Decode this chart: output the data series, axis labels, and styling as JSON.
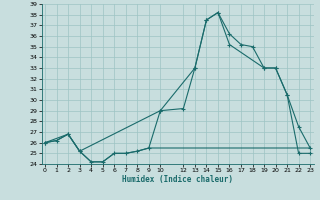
{
  "xlabel": "Humidex (Indice chaleur)",
  "bg_color": "#c8dede",
  "grid_color": "#9dc4c4",
  "line_color": "#1a6b6b",
  "xlim": [
    0,
    23
  ],
  "ylim": [
    24,
    39
  ],
  "yticks": [
    24,
    25,
    26,
    27,
    28,
    29,
    30,
    31,
    32,
    33,
    34,
    35,
    36,
    37,
    38,
    39
  ],
  "xticks": [
    0,
    1,
    2,
    3,
    4,
    5,
    6,
    7,
    8,
    9,
    10,
    12,
    13,
    14,
    15,
    16,
    17,
    18,
    19,
    20,
    21,
    22,
    23
  ],
  "line1_x": [
    0,
    1,
    2,
    3,
    4,
    5,
    6,
    7,
    8,
    9,
    10,
    12,
    13,
    14,
    15,
    16,
    17,
    18,
    19,
    20,
    21,
    22,
    23
  ],
  "line1_y": [
    26,
    26.2,
    26.8,
    25.2,
    24.2,
    24.2,
    25,
    25,
    25.2,
    25.5,
    29,
    29.2,
    33,
    37.5,
    38.2,
    36.2,
    35.2,
    35,
    33,
    33,
    30.5,
    25,
    25
  ],
  "line2_x": [
    0,
    1,
    2,
    3,
    4,
    5,
    6,
    7,
    8,
    9,
    10,
    12,
    13,
    14,
    15,
    16,
    17,
    18,
    19,
    20,
    21,
    22,
    23
  ],
  "line2_y": [
    26,
    26.2,
    26.8,
    25.2,
    24.2,
    24.2,
    25,
    25,
    25.2,
    25.5,
    25.5,
    25.5,
    25.5,
    25.5,
    25.5,
    25.5,
    25.5,
    25.5,
    25.5,
    25.5,
    25.5,
    25.5,
    25.5
  ],
  "line3_x": [
    0,
    2,
    3,
    10,
    13,
    14,
    15,
    16,
    19,
    20,
    21,
    22,
    23
  ],
  "line3_y": [
    26,
    26.8,
    25.2,
    29,
    33,
    37.5,
    38.2,
    35.2,
    33,
    33,
    30.5,
    27.5,
    25.5
  ]
}
